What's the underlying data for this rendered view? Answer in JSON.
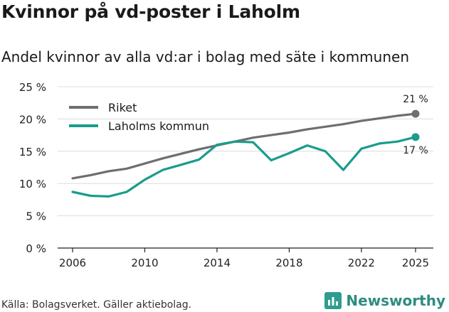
{
  "title": "Kvinnor på vd-poster i Laholm",
  "subtitle": "Andel kvinnor av alla vd:ar i bolag med säte i kommunen",
  "source": "Källa: Bolagsverket. Gäller aktiebolag.",
  "brand": "Newsworthy",
  "colors": {
    "riket": "#6e6e72",
    "laholm": "#1a9c8c",
    "grid": "#dcdcdc",
    "brand": "#2e9c8f"
  },
  "chart_data": {
    "type": "line",
    "title": "Kvinnor på vd-poster i Laholm",
    "subtitle": "Andel kvinnor av alla vd:ar i bolag med säte i kommunen",
    "xlabel": "",
    "ylabel": "",
    "xlim": [
      2006,
      2025
    ],
    "ylim": [
      0,
      25
    ],
    "y_ticks": [
      0,
      5,
      10,
      15,
      20,
      25
    ],
    "y_tick_labels": [
      "0 %",
      "5 %",
      "10 %",
      "15 %",
      "20 %",
      "25 %"
    ],
    "x_ticks": [
      2006,
      2010,
      2014,
      2018,
      2022,
      2025
    ],
    "x_tick_labels": [
      "2006",
      "2010",
      "2014",
      "2018",
      "2022",
      "2025"
    ],
    "grid": true,
    "legend_position": "top-left",
    "series": [
      {
        "name": "Riket",
        "color": "#6e6e72",
        "x": [
          2006,
          2007,
          2008,
          2009,
          2010,
          2011,
          2012,
          2013,
          2014,
          2015,
          2016,
          2017,
          2018,
          2019,
          2020,
          2021,
          2022,
          2023,
          2024,
          2025
        ],
        "values": [
          10.8,
          11.3,
          11.9,
          12.3,
          13.1,
          13.9,
          14.6,
          15.3,
          15.9,
          16.5,
          17.1,
          17.5,
          17.9,
          18.4,
          18.8,
          19.2,
          19.7,
          20.1,
          20.5,
          20.8
        ],
        "end_label": "21 %"
      },
      {
        "name": "Laholms kommun",
        "color": "#1a9c8c",
        "x": [
          2006,
          2007,
          2008,
          2009,
          2010,
          2011,
          2012,
          2013,
          2014,
          2015,
          2016,
          2017,
          2018,
          2019,
          2020,
          2021,
          2022,
          2023,
          2024,
          2025
        ],
        "values": [
          8.7,
          8.1,
          8.0,
          8.7,
          10.6,
          12.1,
          12.9,
          13.7,
          16.0,
          16.5,
          16.4,
          13.6,
          14.7,
          15.9,
          15.0,
          12.1,
          15.4,
          16.2,
          16.5,
          17.2
        ],
        "end_label": "17 %"
      }
    ]
  }
}
